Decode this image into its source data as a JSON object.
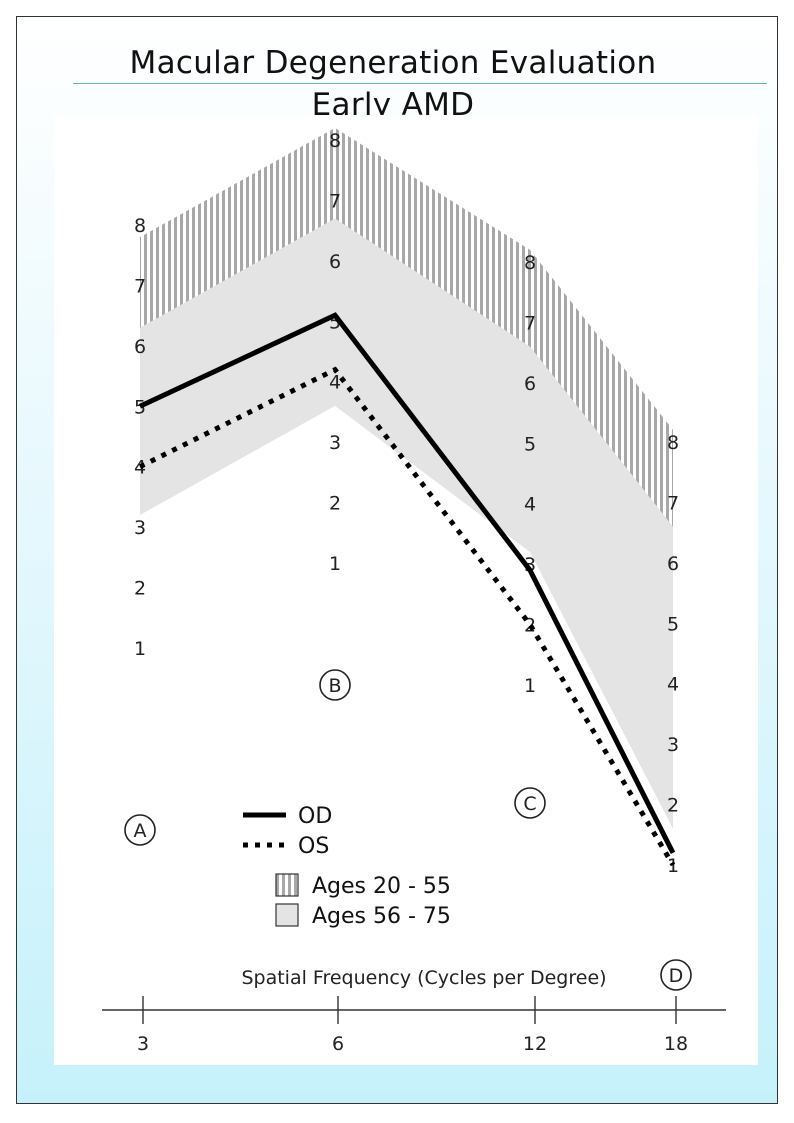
{
  "page": {
    "title_line1": "Macular Degeneration Evaluation",
    "title_line2": "Early AMD"
  },
  "chart_data": {
    "type": "line",
    "title": "Macular Degeneration Evaluation",
    "subtitle": "Early AMD",
    "xlabel": "Spatial Frequency (Cycles per Degree)",
    "x": [
      3,
      6,
      12,
      18
    ],
    "x_tick_labels": [
      "3",
      "6",
      "12",
      "18"
    ],
    "column_letters": [
      "A",
      "B",
      "C",
      "D"
    ],
    "column_scales": [
      [
        "1",
        "2",
        "3",
        "4",
        "5",
        "6",
        "7",
        "8"
      ],
      [
        "1",
        "2",
        "3",
        "4",
        "5",
        "6",
        "7",
        "8"
      ],
      [
        "1",
        "2",
        "3",
        "4",
        "5",
        "6",
        "7",
        "8"
      ],
      [
        "1",
        "2",
        "3",
        "4",
        "5",
        "6",
        "7",
        "8"
      ]
    ],
    "series": [
      {
        "name": "OD",
        "style": "solid",
        "values": [
          5,
          5.1,
          2.9,
          1.2
        ]
      },
      {
        "name": "OS",
        "style": "dotted",
        "values": [
          4,
          4.2,
          2,
          1
        ]
      }
    ],
    "bands": [
      {
        "name": "Ages 20 - 55",
        "pattern": "hatched",
        "low": [
          4.6,
          5.9,
          4.9,
          4.6
        ],
        "high": [
          7.8,
          8.2,
          8.2,
          8.2
        ]
      },
      {
        "name": "Ages 56 - 75",
        "pattern": "solid",
        "low": [
          3.2,
          3.6,
          3.2,
          1.6
        ],
        "high": [
          6.3,
          6.7,
          6.6,
          6.6
        ]
      }
    ],
    "legend_position": "lower-left",
    "colors": {
      "band_fill": "#e4e4e4",
      "hatch": "#a8a8a8",
      "line": "#000000"
    }
  }
}
